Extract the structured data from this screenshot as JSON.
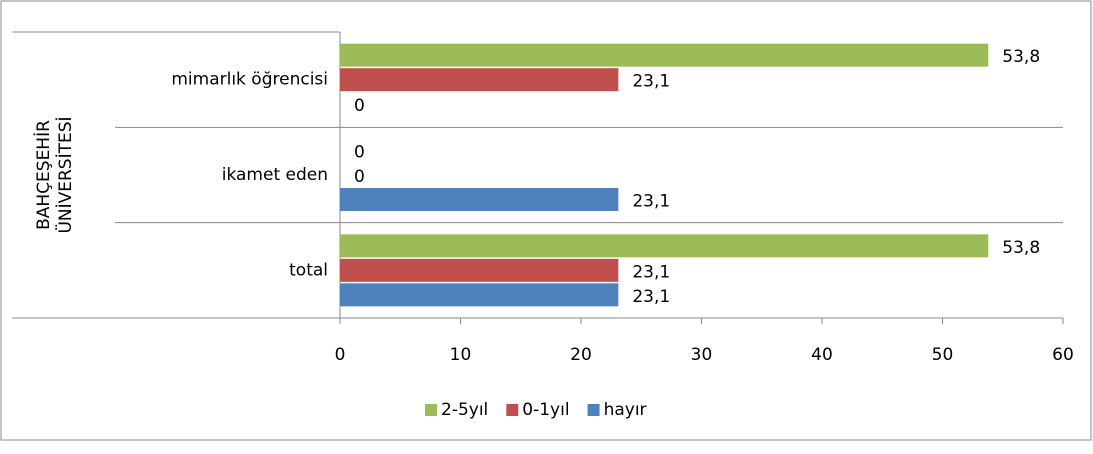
{
  "chart_data": {
    "type": "bar",
    "orientation": "horizontal",
    "group_label": [
      "BAHÇEŞEHİR",
      "ÜNİVERSİTESİ"
    ],
    "categories": [
      "mimarlık öğrencisi",
      "ikamet eden",
      "total"
    ],
    "series": [
      {
        "name": "2-5yıl",
        "color": "#9bbb59",
        "values": [
          53.8,
          0,
          53.8
        ],
        "value_labels": [
          "53,8",
          "0",
          "53,8"
        ]
      },
      {
        "name": "0-1yıl",
        "color": "#c0504d",
        "values": [
          23.1,
          0,
          23.1
        ],
        "value_labels": [
          "23,1",
          "0",
          "23,1"
        ]
      },
      {
        "name": "hayır",
        "color": "#4f81bd",
        "values": [
          0,
          23.1,
          23.1
        ],
        "value_labels": [
          "0",
          "23,1",
          "23,1"
        ]
      }
    ],
    "xlim": [
      0,
      60
    ],
    "xticks": [
      0,
      10,
      20,
      30,
      40,
      50,
      60
    ],
    "legend": "bottom"
  }
}
